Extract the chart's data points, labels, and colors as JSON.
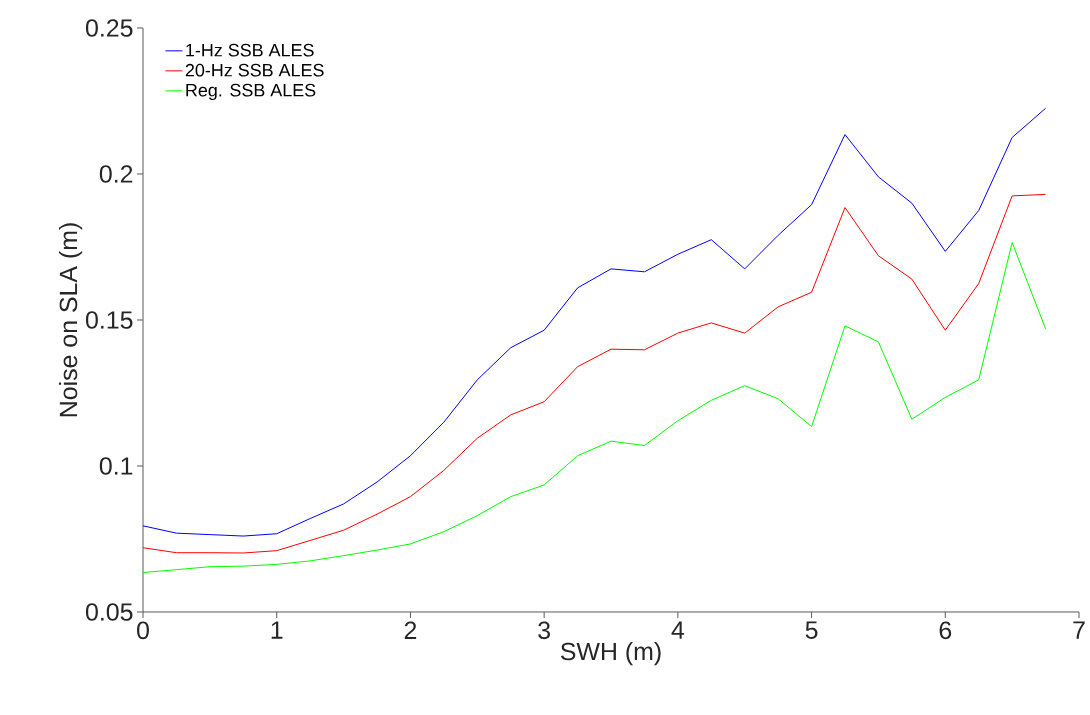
{
  "chart_data": {
    "type": "line",
    "xlabel": "SWH (m)",
    "ylabel": "Noise on SLA (m)",
    "x": [
      0,
      0.25,
      0.5,
      0.75,
      1,
      1.25,
      1.5,
      1.75,
      2,
      2.25,
      2.5,
      2.75,
      3,
      3.25,
      3.5,
      3.75,
      4,
      4.25,
      4.5,
      4.75,
      5,
      5.25,
      5.5,
      5.75,
      6,
      6.25,
      6.5,
      6.75
    ],
    "series": [
      {
        "name": "1-Hz SSB ALES",
        "color": "#0000ff",
        "values": [
          0.0795,
          0.077,
          0.0765,
          0.076,
          0.0768,
          0.082,
          0.087,
          0.0945,
          0.1035,
          0.115,
          0.1295,
          0.1405,
          0.1465,
          0.161,
          0.1675,
          0.1665,
          0.1725,
          0.1775,
          0.1675,
          0.179,
          0.1895,
          0.2135,
          0.199,
          0.19,
          0.1735,
          0.1875,
          0.2125,
          0.2225
        ]
      },
      {
        "name": "20-Hz SSB ALES",
        "color": "#ff0000",
        "values": [
          0.072,
          0.0703,
          0.0703,
          0.0702,
          0.071,
          0.0745,
          0.078,
          0.0835,
          0.0895,
          0.0985,
          0.1095,
          0.1175,
          0.122,
          0.134,
          0.14,
          0.1398,
          0.1455,
          0.149,
          0.1455,
          0.1545,
          0.1595,
          0.1885,
          0.172,
          0.164,
          0.1465,
          0.1625,
          0.1925,
          0.193
        ]
      },
      {
        "name": "Reg. SSB ALES",
        "color": "#00ff00",
        "values": [
          0.0635,
          0.0645,
          0.0655,
          0.0657,
          0.0663,
          0.0675,
          0.0693,
          0.0712,
          0.0733,
          0.0775,
          0.083,
          0.0895,
          0.0935,
          0.1035,
          0.1085,
          0.107,
          0.1155,
          0.1225,
          0.1275,
          0.123,
          0.1135,
          0.148,
          0.1425,
          0.116,
          0.1235,
          0.1295,
          0.1765,
          0.147
        ]
      }
    ],
    "xlim": [
      0,
      7
    ],
    "xticks": [
      0,
      1,
      2,
      3,
      4,
      5,
      6,
      7
    ],
    "ylim": [
      0.05,
      0.25
    ],
    "yticks": [
      0.05,
      0.1,
      0.15,
      0.2,
      0.25
    ],
    "grid": false,
    "legend": "top left",
    "marker": "none",
    "line_style": "solid"
  }
}
